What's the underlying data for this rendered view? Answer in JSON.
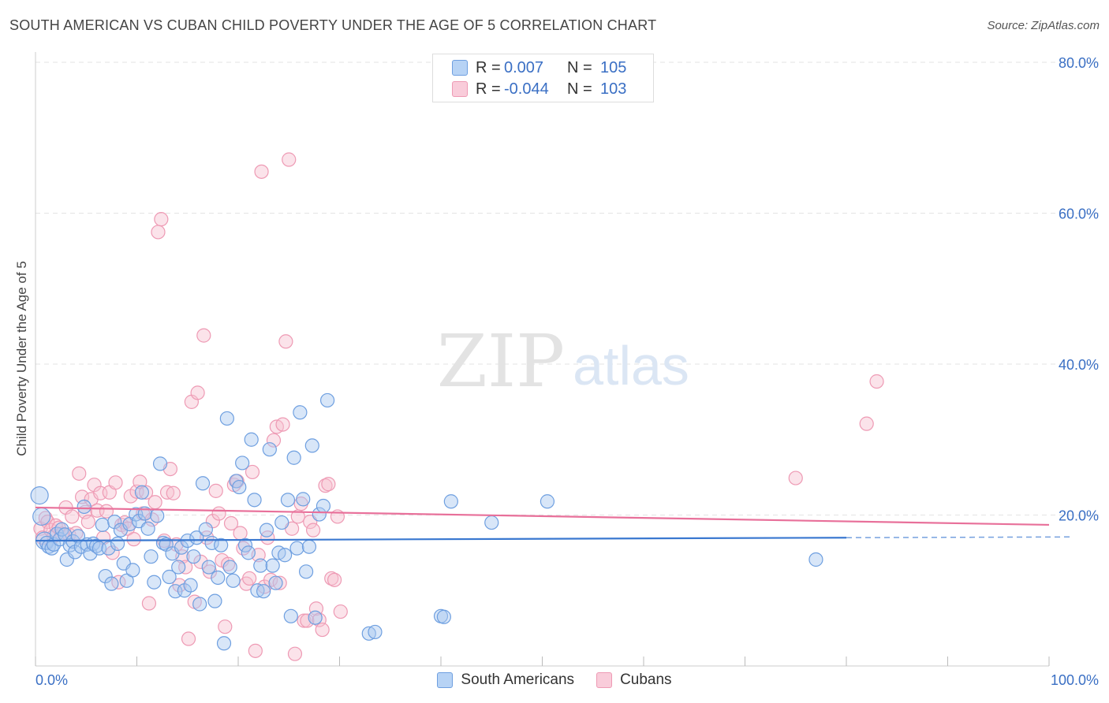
{
  "header": {
    "title": "SOUTH AMERICAN VS CUBAN CHILD POVERTY UNDER THE AGE OF 5 CORRELATION CHART",
    "source": "Source: ZipAtlas.com"
  },
  "watermark": {
    "zip": "ZIP",
    "atlas": "atlas"
  },
  "legend": {
    "rows": [
      {
        "r_label": "R =",
        "r_value": "0.007",
        "n_label": "N =",
        "n_value": "105",
        "color": "#7aaae8"
      },
      {
        "r_label": "R =",
        "r_value": "-0.044",
        "n_label": "N =",
        "n_value": "103",
        "color": "#f0a0b8"
      }
    ]
  },
  "bottom_legend": {
    "items": [
      "South Americans",
      "Cubans"
    ]
  },
  "colors": {
    "blue_fill": "#a9c8f0",
    "blue_stroke": "#6e9fe0",
    "blue_line": "#3a78d0",
    "pink_fill": "#f7c0d0",
    "pink_stroke": "#ee9ab4",
    "pink_line": "#e8709a",
    "tick_label": "#3a6fc4",
    "grid": "#e3e3e3"
  },
  "chart_data": {
    "type": "scatter",
    "title": "SOUTH AMERICAN VS CUBAN CHILD POVERTY UNDER THE AGE OF 5 CORRELATION CHART",
    "xlabel": "",
    "ylabel": "Child Poverty Under the Age of 5",
    "xlim": [
      0,
      100
    ],
    "ylim": [
      0,
      80
    ],
    "x_tick_labels": [
      "0.0%",
      "100.0%"
    ],
    "y_ticks": [
      20,
      40,
      60,
      80
    ],
    "y_tick_labels": [
      "20.0%",
      "40.0%",
      "60.0%",
      "80.0%"
    ],
    "grid": true,
    "legend_position": "top-center",
    "series": [
      {
        "name": "South Americans",
        "r": 0.007,
        "n": 105,
        "trend": {
          "x_start": 0,
          "y_start": 16.6,
          "x_solid_end": 80,
          "y_solid_end": 17.0,
          "x_end": 100,
          "y_end": 17.1
        },
        "points": [
          [
            0.4,
            22.6
          ],
          [
            0.6,
            19.8
          ],
          [
            0.9,
            16.6
          ],
          [
            1.1,
            16.3
          ],
          [
            1.3,
            15.8
          ],
          [
            1.6,
            15.6
          ],
          [
            1.8,
            16.1
          ],
          [
            2.1,
            17.5
          ],
          [
            2.4,
            16.8
          ],
          [
            2.6,
            18.1
          ],
          [
            2.9,
            17.4
          ],
          [
            3.1,
            14.1
          ],
          [
            3.4,
            16.0
          ],
          [
            3.7,
            16.5
          ],
          [
            3.9,
            15.1
          ],
          [
            4.2,
            17.2
          ],
          [
            4.5,
            15.8
          ],
          [
            4.8,
            21.1
          ],
          [
            5.1,
            16.1
          ],
          [
            5.4,
            14.9
          ],
          [
            5.7,
            16.2
          ],
          [
            6.0,
            15.9
          ],
          [
            6.3,
            15.6
          ],
          [
            6.6,
            18.7
          ],
          [
            6.9,
            11.9
          ],
          [
            7.2,
            15.6
          ],
          [
            7.5,
            10.9
          ],
          [
            7.8,
            19.1
          ],
          [
            8.1,
            16.2
          ],
          [
            8.4,
            18.0
          ],
          [
            8.7,
            13.6
          ],
          [
            9.0,
            11.3
          ],
          [
            9.3,
            18.8
          ],
          [
            9.6,
            12.7
          ],
          [
            9.9,
            20.1
          ],
          [
            10.2,
            19.2
          ],
          [
            10.5,
            23.0
          ],
          [
            10.8,
            20.2
          ],
          [
            11.1,
            18.2
          ],
          [
            11.4,
            14.5
          ],
          [
            11.7,
            11.1
          ],
          [
            12.0,
            19.9
          ],
          [
            12.3,
            26.8
          ],
          [
            12.6,
            16.3
          ],
          [
            12.9,
            16.1
          ],
          [
            13.2,
            11.8
          ],
          [
            13.5,
            14.9
          ],
          [
            13.8,
            9.9
          ],
          [
            14.1,
            13.1
          ],
          [
            14.4,
            15.7
          ],
          [
            14.7,
            10.0
          ],
          [
            15.0,
            16.6
          ],
          [
            15.3,
            10.7
          ],
          [
            15.6,
            14.5
          ],
          [
            15.9,
            17.0
          ],
          [
            16.2,
            8.2
          ],
          [
            16.5,
            24.2
          ],
          [
            16.8,
            18.1
          ],
          [
            17.1,
            13.1
          ],
          [
            17.4,
            16.3
          ],
          [
            17.7,
            8.6
          ],
          [
            18.0,
            11.7
          ],
          [
            18.3,
            16.0
          ],
          [
            18.6,
            3.0
          ],
          [
            18.9,
            32.8
          ],
          [
            19.2,
            13.1
          ],
          [
            19.5,
            11.3
          ],
          [
            19.8,
            24.5
          ],
          [
            20.1,
            23.7
          ],
          [
            20.4,
            26.9
          ],
          [
            20.7,
            16.0
          ],
          [
            21.0,
            15.0
          ],
          [
            21.3,
            30.0
          ],
          [
            21.6,
            22.0
          ],
          [
            21.9,
            10.0
          ],
          [
            22.2,
            13.3
          ],
          [
            22.5,
            9.9
          ],
          [
            22.8,
            18.0
          ],
          [
            23.1,
            28.7
          ],
          [
            23.4,
            13.3
          ],
          [
            23.7,
            11.0
          ],
          [
            24.0,
            15.0
          ],
          [
            24.3,
            19.0
          ],
          [
            24.6,
            14.7
          ],
          [
            24.9,
            22.0
          ],
          [
            25.2,
            6.6
          ],
          [
            25.5,
            27.6
          ],
          [
            25.8,
            15.6
          ],
          [
            26.1,
            33.6
          ],
          [
            26.4,
            22.1
          ],
          [
            26.7,
            12.5
          ],
          [
            27.0,
            15.8
          ],
          [
            27.3,
            29.2
          ],
          [
            27.6,
            6.4
          ],
          [
            28.0,
            20.1
          ],
          [
            28.4,
            21.2
          ],
          [
            28.8,
            35.2
          ],
          [
            32.9,
            4.3
          ],
          [
            33.5,
            4.5
          ],
          [
            40.0,
            6.6
          ],
          [
            40.3,
            6.5
          ],
          [
            41.0,
            21.8
          ],
          [
            45.0,
            19.0
          ],
          [
            50.5,
            21.8
          ],
          [
            77.0,
            14.1
          ]
        ]
      },
      {
        "name": "Cubans",
        "r": -0.044,
        "n": 103,
        "trend": {
          "x_start": 0,
          "y_start": 21.0,
          "x_end": 100,
          "y_end": 18.7
        },
        "points": [
          [
            0.5,
            18.2
          ],
          [
            0.7,
            17.0
          ],
          [
            1.0,
            19.6
          ],
          [
            1.2,
            19.1
          ],
          [
            1.5,
            18.0
          ],
          [
            1.8,
            17.2
          ],
          [
            2.0,
            18.6
          ],
          [
            2.3,
            18.3
          ],
          [
            2.6,
            17.5
          ],
          [
            3.0,
            21.0
          ],
          [
            3.3,
            17.4
          ],
          [
            3.6,
            19.8
          ],
          [
            4.0,
            17.6
          ],
          [
            4.3,
            25.5
          ],
          [
            4.6,
            22.4
          ],
          [
            4.9,
            20.4
          ],
          [
            5.2,
            19.1
          ],
          [
            5.5,
            22.1
          ],
          [
            5.8,
            24.0
          ],
          [
            6.1,
            20.6
          ],
          [
            6.4,
            22.9
          ],
          [
            6.7,
            17.0
          ],
          [
            7.0,
            20.5
          ],
          [
            7.3,
            23.0
          ],
          [
            7.6,
            15.0
          ],
          [
            7.9,
            24.3
          ],
          [
            8.2,
            11.1
          ],
          [
            8.5,
            18.7
          ],
          [
            8.8,
            19.0
          ],
          [
            9.1,
            18.2
          ],
          [
            9.4,
            22.5
          ],
          [
            9.7,
            16.8
          ],
          [
            10.0,
            23.1
          ],
          [
            10.3,
            24.4
          ],
          [
            10.6,
            20.2
          ],
          [
            10.9,
            23.0
          ],
          [
            11.2,
            8.3
          ],
          [
            11.5,
            19.4
          ],
          [
            11.8,
            21.7
          ],
          [
            12.1,
            57.5
          ],
          [
            12.4,
            59.2
          ],
          [
            12.7,
            16.6
          ],
          [
            13.0,
            23.0
          ],
          [
            13.3,
            26.1
          ],
          [
            13.6,
            22.9
          ],
          [
            13.9,
            16.1
          ],
          [
            14.2,
            10.7
          ],
          [
            14.5,
            14.5
          ],
          [
            14.8,
            13.1
          ],
          [
            15.1,
            3.6
          ],
          [
            15.4,
            35.0
          ],
          [
            15.7,
            8.5
          ],
          [
            16.0,
            36.2
          ],
          [
            16.3,
            13.8
          ],
          [
            16.6,
            43.8
          ],
          [
            16.9,
            17.0
          ],
          [
            17.2,
            12.5
          ],
          [
            17.5,
            19.2
          ],
          [
            17.8,
            23.2
          ],
          [
            18.1,
            20.2
          ],
          [
            18.4,
            14.0
          ],
          [
            18.7,
            5.2
          ],
          [
            19.0,
            13.5
          ],
          [
            19.3,
            18.9
          ],
          [
            19.6,
            24.0
          ],
          [
            19.9,
            24.5
          ],
          [
            20.2,
            17.6
          ],
          [
            20.5,
            15.6
          ],
          [
            20.8,
            10.9
          ],
          [
            21.1,
            11.6
          ],
          [
            21.4,
            25.7
          ],
          [
            21.7,
            2.0
          ],
          [
            22.0,
            14.7
          ],
          [
            22.3,
            65.5
          ],
          [
            22.6,
            10.5
          ],
          [
            22.9,
            17.0
          ],
          [
            23.2,
            11.4
          ],
          [
            23.5,
            29.9
          ],
          [
            23.8,
            31.7
          ],
          [
            24.1,
            11.0
          ],
          [
            24.4,
            32.0
          ],
          [
            24.7,
            43.0
          ],
          [
            25.0,
            67.1
          ],
          [
            25.3,
            18.2
          ],
          [
            25.6,
            1.6
          ],
          [
            25.9,
            19.8
          ],
          [
            26.2,
            21.5
          ],
          [
            26.5,
            6.0
          ],
          [
            26.8,
            6.0
          ],
          [
            27.1,
            19.1
          ],
          [
            27.4,
            18.0
          ],
          [
            27.7,
            7.6
          ],
          [
            28.0,
            6.1
          ],
          [
            28.3,
            4.8
          ],
          [
            28.6,
            23.9
          ],
          [
            28.9,
            24.1
          ],
          [
            29.2,
            11.6
          ],
          [
            29.5,
            11.4
          ],
          [
            29.8,
            19.8
          ],
          [
            30.1,
            7.2
          ],
          [
            75.0,
            24.9
          ],
          [
            82.0,
            32.1
          ],
          [
            83.0,
            37.7
          ]
        ]
      }
    ]
  }
}
